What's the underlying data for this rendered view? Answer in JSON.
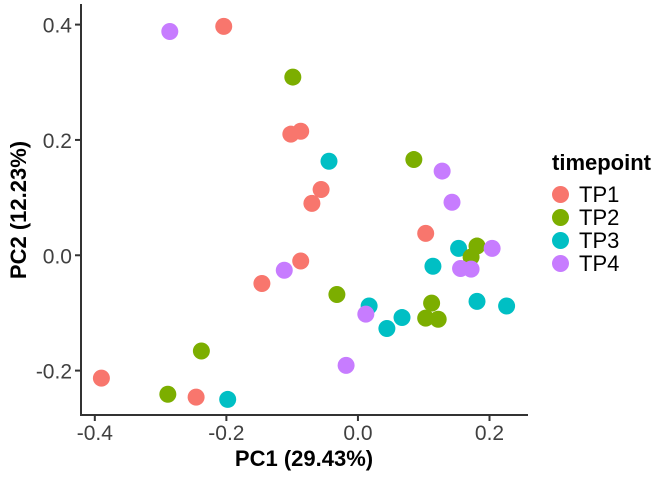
{
  "chart_data": {
    "type": "scatter",
    "title": "",
    "xlabel": "PC1 (29.43%)",
    "ylabel": "PC2 (12.23%)",
    "xlim": [
      -0.421,
      0.257
    ],
    "ylim": [
      -0.277,
      0.434
    ],
    "x_ticks": [
      -0.4,
      -0.2,
      0.0,
      0.2
    ],
    "x_tick_labels": [
      "-0.4",
      "-0.2",
      "0.0",
      "0.2"
    ],
    "y_ticks": [
      0.4,
      0.2,
      0.0,
      -0.2
    ],
    "y_tick_labels": [
      "0.4",
      "0.2",
      "0.0",
      "-0.2"
    ],
    "grid": false,
    "point_radius": 8.5,
    "draw_order": [
      0,
      2,
      1,
      3
    ],
    "legend": {
      "title": "timepoint",
      "position": "right"
    },
    "series": [
      {
        "name": "TP1",
        "color": "#F8766D",
        "points": [
          [
            -0.204,
            0.397
          ],
          [
            -0.102,
            0.21
          ],
          [
            -0.087,
            0.215
          ],
          [
            -0.056,
            0.114
          ],
          [
            -0.07,
            0.09
          ],
          [
            0.103,
            0.038
          ],
          [
            -0.087,
            -0.01
          ],
          [
            -0.146,
            -0.049
          ],
          [
            -0.39,
            -0.213
          ],
          [
            -0.246,
            -0.246
          ]
        ]
      },
      {
        "name": "TP2",
        "color": "#7CAE00",
        "points": [
          [
            -0.099,
            0.309
          ],
          [
            0.085,
            0.166
          ],
          [
            0.181,
            0.016
          ],
          [
            0.172,
            -0.003
          ],
          [
            -0.032,
            -0.068
          ],
          [
            0.112,
            -0.083
          ],
          [
            0.103,
            -0.109
          ],
          [
            0.122,
            -0.111
          ],
          [
            -0.238,
            -0.166
          ],
          [
            -0.289,
            -0.241
          ]
        ]
      },
      {
        "name": "TP3",
        "color": "#00BFC4",
        "points": [
          [
            -0.044,
            0.163
          ],
          [
            0.153,
            0.012
          ],
          [
            0.114,
            -0.019
          ],
          [
            0.017,
            -0.088
          ],
          [
            0.044,
            -0.127
          ],
          [
            0.067,
            -0.108
          ],
          [
            0.181,
            -0.08
          ],
          [
            0.226,
            -0.088
          ],
          [
            -0.198,
            -0.25
          ]
        ]
      },
      {
        "name": "TP4",
        "color": "#C77CFF",
        "points": [
          [
            -0.286,
            0.388
          ],
          [
            0.128,
            0.146
          ],
          [
            0.143,
            0.092
          ],
          [
            0.204,
            0.012
          ],
          [
            0.156,
            -0.023
          ],
          [
            0.172,
            -0.024
          ],
          [
            -0.112,
            -0.026
          ],
          [
            0.012,
            -0.102
          ],
          [
            -0.018,
            -0.191
          ]
        ]
      }
    ]
  }
}
